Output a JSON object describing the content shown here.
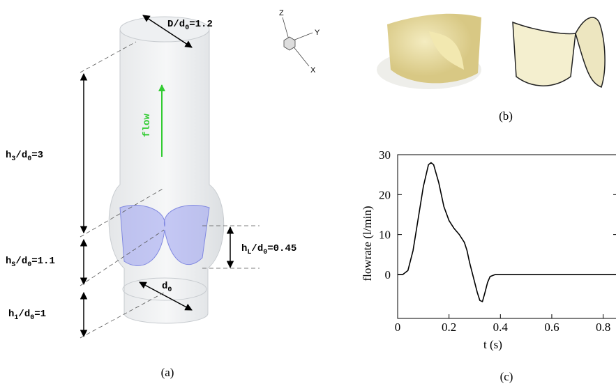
{
  "panel_a": {
    "label": "(a)",
    "flow": "flow",
    "axes": [
      "Z",
      "Y",
      "X"
    ],
    "dims": {
      "D": [
        "D/d",
        "0",
        "=1.2"
      ],
      "h3": [
        "h",
        "3",
        "/d",
        "0",
        "=3"
      ],
      "hs": [
        "h",
        "S",
        "/d",
        "0",
        "=1.1"
      ],
      "h1": [
        "h",
        "1",
        "/d",
        "0",
        "=1"
      ],
      "hL": [
        "h",
        "L",
        "/d",
        "0",
        "=0.45"
      ],
      "d0": [
        "d",
        "0"
      ]
    }
  },
  "panel_b": {
    "label": "(b)"
  },
  "chart_data": {
    "type": "line",
    "panel_label": "(c)",
    "x_label": "t (s)",
    "y_label": "flowrate (l/min)",
    "color": "#000000",
    "x": [
      0,
      0.02,
      0.04,
      0.06,
      0.08,
      0.1,
      0.12,
      0.13,
      0.14,
      0.16,
      0.18,
      0.2,
      0.22,
      0.24,
      0.26,
      0.27,
      0.28,
      0.29,
      0.3,
      0.31,
      0.32,
      0.33,
      0.34,
      0.35,
      0.36,
      0.38,
      0.4,
      0.5,
      0.6,
      0.7,
      0.8,
      0.85
    ],
    "values": [
      0,
      0,
      1,
      6,
      14,
      22,
      27.5,
      28,
      27.5,
      23,
      17,
      13.5,
      11.5,
      10,
      8,
      6,
      3,
      0.5,
      -2,
      -4.5,
      -6.5,
      -6.8,
      -4.5,
      -2,
      -0.5,
      0,
      0,
      0,
      0,
      0,
      0,
      0
    ],
    "xlim": [
      0,
      0.85
    ],
    "ylim": [
      -11,
      30
    ],
    "xticks": [
      0,
      0.2,
      0.4,
      0.6,
      0.8
    ],
    "yticks": [
      0,
      10,
      20,
      30
    ]
  }
}
